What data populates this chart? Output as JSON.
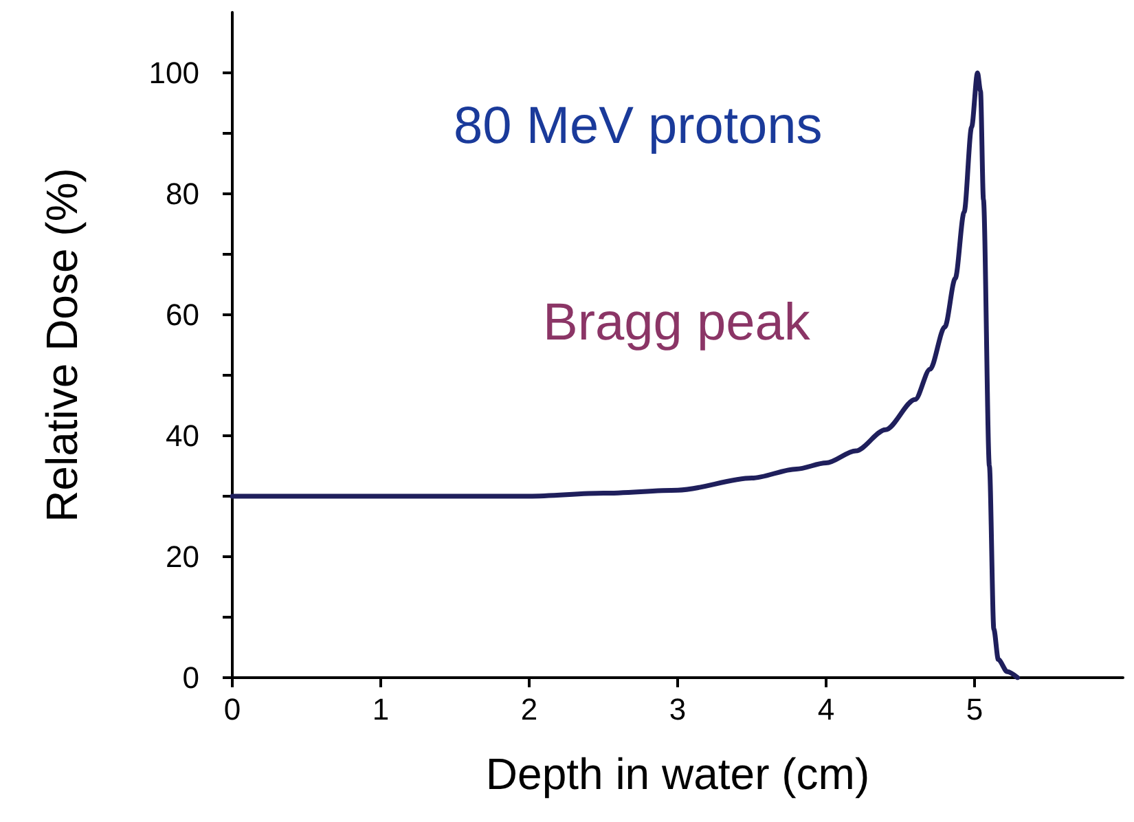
{
  "chart_data": {
    "type": "line",
    "xlabel": "Depth in water (cm)",
    "ylabel": "Relative Dose (%)",
    "annotations": [
      "80 MeV protons",
      "Bragg peak"
    ],
    "x": [
      0,
      1,
      2,
      2.5,
      3,
      3.5,
      3.8,
      4,
      4.2,
      4.4,
      4.6,
      4.7,
      4.8,
      4.87,
      4.93,
      4.98,
      5.02,
      5.04,
      5.06,
      5.1,
      5.13,
      5.16,
      5.22,
      5.29
    ],
    "series": [
      {
        "color": "#1f1f5c",
        "values": [
          30,
          30,
          30,
          30.5,
          31,
          33,
          34.5,
          35.5,
          37.5,
          41,
          46,
          51,
          58,
          66,
          77,
          91,
          100,
          97,
          79,
          35,
          8,
          3,
          1,
          0
        ]
      }
    ],
    "xlim": [
      0,
      6
    ],
    "xticks": [
      0,
      1,
      2,
      3,
      4,
      5
    ],
    "ylim": [
      0,
      110
    ],
    "yticks": [
      0,
      {
        "value": 10,
        "label": null
      },
      20,
      {
        "value": 30,
        "label": null
      },
      40,
      {
        "value": 50,
        "label": null
      },
      60,
      {
        "value": 70,
        "label": null
      },
      80,
      {
        "value": 90,
        "label": null
      },
      100
    ],
    "grid": false,
    "marker": "none",
    "line_style": "solid"
  }
}
